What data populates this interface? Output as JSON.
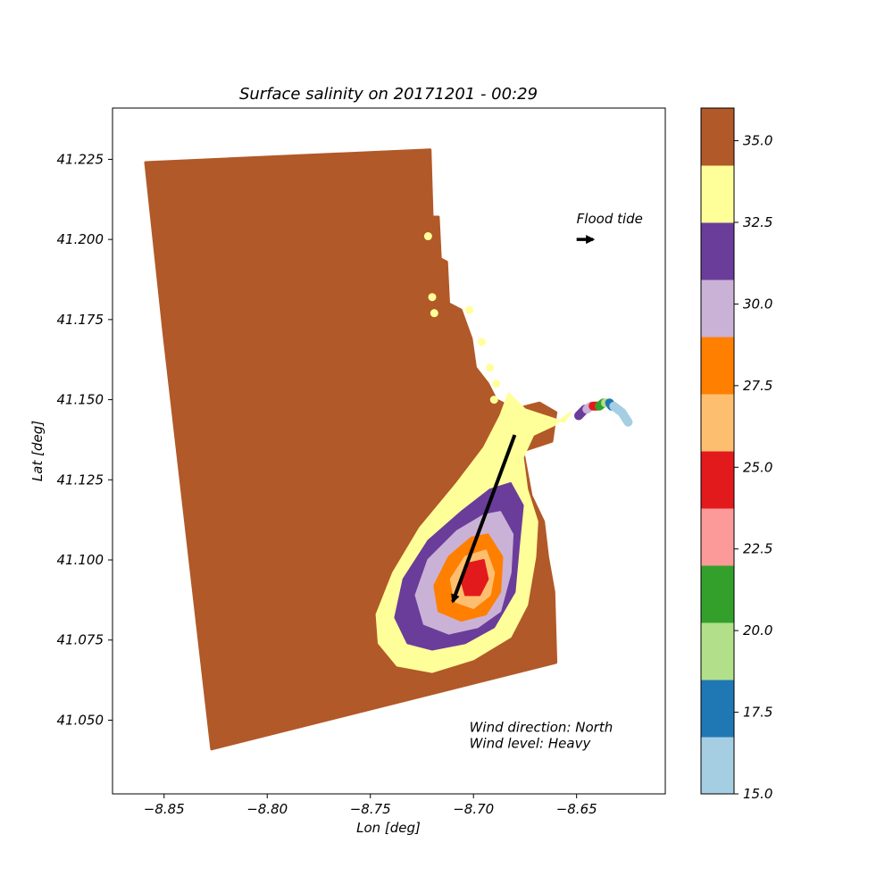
{
  "chart_data": {
    "type": "scatter",
    "title": "Surface salinity on 20171201 - 00:29",
    "xlabel": "Lon [deg]",
    "ylabel": "Lat [deg]",
    "xlim": [
      -8.875,
      -8.607
    ],
    "ylim": [
      41.027,
      41.241
    ],
    "xticks": [
      {
        "value": -8.85,
        "label": "−8.85"
      },
      {
        "value": -8.8,
        "label": "−8.80"
      },
      {
        "value": -8.75,
        "label": "−8.75"
      },
      {
        "value": -8.7,
        "label": "−8.70"
      },
      {
        "value": -8.65,
        "label": "−8.65"
      }
    ],
    "yticks": [
      {
        "value": 41.05,
        "label": "41.050"
      },
      {
        "value": 41.075,
        "label": "41.075"
      },
      {
        "value": 41.1,
        "label": "41.100"
      },
      {
        "value": 41.125,
        "label": "41.125"
      },
      {
        "value": 41.15,
        "label": "41.150"
      },
      {
        "value": 41.175,
        "label": "41.175"
      },
      {
        "value": 41.2,
        "label": "41.200"
      },
      {
        "value": 41.225,
        "label": "41.225"
      }
    ],
    "colorbar": {
      "range": [
        15.0,
        36.0
      ],
      "bins": [
        {
          "from": 15.0,
          "to": 16.75,
          "color": "#a6cee3"
        },
        {
          "from": 16.75,
          "to": 18.5,
          "color": "#1f78b4"
        },
        {
          "from": 18.5,
          "to": 20.25,
          "color": "#b2df8a"
        },
        {
          "from": 20.25,
          "to": 22.0,
          "color": "#33a02c"
        },
        {
          "from": 22.0,
          "to": 23.75,
          "color": "#fb9a99"
        },
        {
          "from": 23.75,
          "to": 25.5,
          "color": "#e31a1c"
        },
        {
          "from": 25.5,
          "to": 27.25,
          "color": "#fdbf6f"
        },
        {
          "from": 27.25,
          "to": 29.0,
          "color": "#ff7f00"
        },
        {
          "from": 29.0,
          "to": 30.75,
          "color": "#cab2d6"
        },
        {
          "from": 30.75,
          "to": 32.5,
          "color": "#6a3d9a"
        },
        {
          "from": 32.5,
          "to": 34.25,
          "color": "#ffff99"
        },
        {
          "from": 34.25,
          "to": 36.0,
          "color": "#b15928"
        }
      ],
      "ticks": [
        {
          "value": 15.0,
          "label": "15.0"
        },
        {
          "value": 17.5,
          "label": "17.5"
        },
        {
          "value": 20.0,
          "label": "20.0"
        },
        {
          "value": 22.5,
          "label": "22.5"
        },
        {
          "value": 25.0,
          "label": "25.0"
        },
        {
          "value": 27.5,
          "label": "27.5"
        },
        {
          "value": 30.0,
          "label": "30.0"
        },
        {
          "value": 32.5,
          "label": "32.5"
        },
        {
          "value": 35.0,
          "label": "35.0"
        }
      ]
    },
    "domain_outline": [
      [
        -8.859,
        41.224
      ],
      [
        -8.721,
        41.228
      ],
      [
        -8.72,
        41.207
      ],
      [
        -8.717,
        41.207
      ],
      [
        -8.716,
        41.194
      ],
      [
        -8.713,
        41.193
      ],
      [
        -8.712,
        41.18
      ],
      [
        -8.706,
        41.178
      ],
      [
        -8.701,
        41.169
      ],
      [
        -8.699,
        41.16
      ],
      [
        -8.693,
        41.155
      ],
      [
        -8.689,
        41.15
      ],
      [
        -8.68,
        41.147
      ],
      [
        -8.668,
        41.149
      ],
      [
        -8.66,
        41.146
      ],
      [
        -8.662,
        41.137
      ],
      [
        -8.676,
        41.134
      ],
      [
        -8.672,
        41.12
      ],
      [
        -8.666,
        41.112
      ],
      [
        -8.664,
        41.101
      ],
      [
        -8.661,
        41.09
      ],
      [
        -8.66,
        41.068
      ],
      [
        -8.827,
        41.041
      ],
      [
        -8.85,
        41.17
      ],
      [
        -8.859,
        41.224
      ]
    ],
    "plume_regions": [
      {
        "salinity": 33.4,
        "color": "#ffff99",
        "outline": [
          [
            -8.683,
            41.152
          ],
          [
            -8.675,
            41.147
          ],
          [
            -8.656,
            41.143
          ],
          [
            -8.653,
            41.146
          ],
          [
            -8.661,
            41.142
          ],
          [
            -8.671,
            41.139
          ],
          [
            -8.676,
            41.132
          ],
          [
            -8.674,
            41.122
          ],
          [
            -8.669,
            41.112
          ],
          [
            -8.67,
            41.101
          ],
          [
            -8.674,
            41.086
          ],
          [
            -8.682,
            41.076
          ],
          [
            -8.7,
            41.069
          ],
          [
            -8.72,
            41.065
          ],
          [
            -8.737,
            41.067
          ],
          [
            -8.746,
            41.074
          ],
          [
            -8.747,
            41.083
          ],
          [
            -8.739,
            41.096
          ],
          [
            -8.726,
            41.11
          ],
          [
            -8.708,
            41.124
          ],
          [
            -8.695,
            41.135
          ],
          [
            -8.687,
            41.145
          ],
          [
            -8.683,
            41.152
          ]
        ]
      },
      {
        "salinity": 31.6,
        "color": "#6a3d9a",
        "outline": [
          [
            -8.682,
            41.124
          ],
          [
            -8.676,
            41.117
          ],
          [
            -8.678,
            41.104
          ],
          [
            -8.68,
            41.09
          ],
          [
            -8.69,
            41.079
          ],
          [
            -8.704,
            41.074
          ],
          [
            -8.72,
            41.072
          ],
          [
            -8.732,
            41.074
          ],
          [
            -8.738,
            41.082
          ],
          [
            -8.734,
            41.094
          ],
          [
            -8.722,
            41.106
          ],
          [
            -8.706,
            41.115
          ],
          [
            -8.692,
            41.122
          ],
          [
            -8.682,
            41.124
          ]
        ]
      },
      {
        "salinity": 29.9,
        "color": "#cab2d6",
        "outline": [
          [
            -8.687,
            41.115
          ],
          [
            -8.681,
            41.108
          ],
          [
            -8.682,
            41.096
          ],
          [
            -8.687,
            41.084
          ],
          [
            -8.698,
            41.079
          ],
          [
            -8.712,
            41.077
          ],
          [
            -8.724,
            41.08
          ],
          [
            -8.728,
            41.089
          ],
          [
            -8.722,
            41.1
          ],
          [
            -8.708,
            41.109
          ],
          [
            -8.695,
            41.114
          ],
          [
            -8.687,
            41.115
          ]
        ]
      },
      {
        "salinity": 28.1,
        "color": "#ff7f00",
        "outline": [
          [
            -8.693,
            41.108
          ],
          [
            -8.686,
            41.101
          ],
          [
            -8.687,
            41.09
          ],
          [
            -8.694,
            41.083
          ],
          [
            -8.706,
            41.081
          ],
          [
            -8.717,
            41.084
          ],
          [
            -8.719,
            41.092
          ],
          [
            -8.712,
            41.101
          ],
          [
            -8.701,
            41.107
          ],
          [
            -8.693,
            41.108
          ]
        ]
      },
      {
        "salinity": 26.4,
        "color": "#fdbf6f",
        "outline": [
          [
            -8.694,
            41.103
          ],
          [
            -8.69,
            41.096
          ],
          [
            -8.692,
            41.089
          ],
          [
            -8.7,
            41.085
          ],
          [
            -8.709,
            41.087
          ],
          [
            -8.711,
            41.094
          ],
          [
            -8.704,
            41.101
          ],
          [
            -8.694,
            41.103
          ]
        ]
      },
      {
        "salinity": 24.6,
        "color": "#e31a1c",
        "outline": [
          [
            -8.695,
            41.1
          ],
          [
            -8.693,
            41.094
          ],
          [
            -8.697,
            41.089
          ],
          [
            -8.704,
            41.089
          ],
          [
            -8.706,
            41.094
          ],
          [
            -8.702,
            41.099
          ],
          [
            -8.695,
            41.1
          ]
        ]
      }
    ],
    "estuary_ribbon": [
      {
        "salinity": 32.5,
        "color": "#6a3d9a",
        "points": [
          [
            -8.649,
            41.145
          ],
          [
            -8.646,
            41.147
          ]
        ]
      },
      {
        "salinity": 29.0,
        "color": "#cab2d6",
        "points": [
          [
            -8.645,
            41.147
          ],
          [
            -8.643,
            41.148
          ]
        ]
      },
      {
        "salinity": 25.0,
        "color": "#e31a1c",
        "points": [
          [
            -8.642,
            41.148
          ],
          [
            -8.64,
            41.148
          ]
        ]
      },
      {
        "salinity": 21.0,
        "color": "#33a02c",
        "points": [
          [
            -8.639,
            41.148
          ],
          [
            -8.637,
            41.149
          ]
        ]
      },
      {
        "salinity": 19.0,
        "color": "#b2df8a",
        "points": [
          [
            -8.636,
            41.149
          ],
          [
            -8.635,
            41.149
          ]
        ]
      },
      {
        "salinity": 17.0,
        "color": "#1f78b4",
        "points": [
          [
            -8.634,
            41.149
          ],
          [
            -8.633,
            41.148
          ]
        ]
      },
      {
        "salinity": 15.5,
        "color": "#a6cee3",
        "points": [
          [
            -8.632,
            41.148
          ],
          [
            -8.628,
            41.146
          ],
          [
            -8.625,
            41.143
          ]
        ]
      }
    ],
    "coastal_dots": [
      [
        -8.722,
        41.201
      ],
      [
        -8.72,
        41.182
      ],
      [
        -8.719,
        41.177
      ],
      [
        -8.702,
        41.178
      ],
      [
        -8.696,
        41.168
      ],
      [
        -8.692,
        41.16
      ],
      [
        -8.689,
        41.155
      ],
      [
        -8.69,
        41.15
      ]
    ],
    "wind_vector": {
      "from": [
        -8.68,
        41.139
      ],
      "to": [
        -8.71,
        41.087
      ]
    },
    "flood_tide": {
      "label": "Flood tide",
      "from": [
        -8.65,
        41.2
      ],
      "to": [
        -8.642,
        41.2
      ]
    },
    "wind_info": {
      "direction": "Wind direction: North",
      "level": "Wind level: Heavy",
      "anchor": [
        -8.702,
        41.043
      ]
    }
  },
  "colors": {
    "ocean": "#b15928",
    "plume_edge": "#ffff99",
    "arrow": "#000000"
  }
}
